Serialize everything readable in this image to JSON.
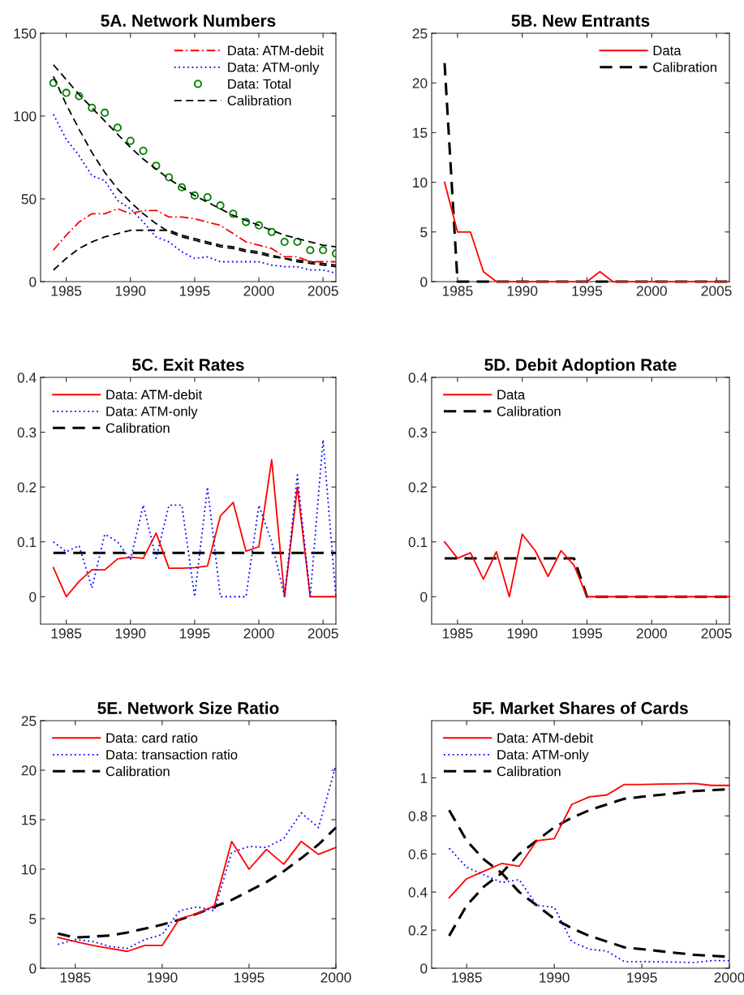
{
  "chart_data": [
    {
      "type": "line",
      "title": "5A. Network Numbers",
      "x": [
        1984,
        1985,
        1986,
        1987,
        1988,
        1989,
        1990,
        1991,
        1992,
        1993,
        1994,
        1995,
        1996,
        1997,
        1998,
        1999,
        2000,
        2001,
        2002,
        2003,
        2004,
        2005,
        2006
      ],
      "xlim": [
        1983,
        2006
      ],
      "xticks": [
        1985,
        1990,
        1995,
        2000,
        2005
      ],
      "ylim": [
        0,
        150
      ],
      "yticks": [
        0,
        50,
        100,
        150
      ],
      "grid": false,
      "legend": "top right",
      "series": [
        {
          "name": "Data: ATM-debit",
          "color": "#ff0000",
          "line_style": "dashdot",
          "values": [
            19,
            28,
            36,
            41,
            41,
            44,
            41,
            43,
            43,
            39,
            39,
            38,
            36,
            34,
            29,
            24,
            22,
            20,
            15,
            15,
            12,
            12,
            12
          ]
        },
        {
          "name": "Data: ATM-only",
          "color": "#0000ff",
          "line_style": "dotted",
          "values": [
            101,
            86,
            76,
            64,
            61,
            49,
            44,
            36,
            27,
            24,
            18,
            14,
            15,
            12,
            12,
            12,
            12,
            10,
            9,
            9,
            7,
            7,
            5
          ]
        },
        {
          "name": "Data: Total",
          "color": "#008000",
          "type": "scatter",
          "marker": "circle",
          "values": [
            120,
            114,
            112,
            105,
            102,
            93,
            85,
            79,
            70,
            63,
            57,
            52,
            51,
            46,
            41,
            36,
            34,
            30,
            24,
            24,
            19,
            19,
            17
          ]
        },
        {
          "name": "Calibration",
          "color": "#000000",
          "line_style": "dashed",
          "values": [
            131,
            122,
            113,
            105,
            97,
            89,
            81,
            74,
            68,
            62,
            57,
            52,
            48,
            44,
            40,
            37,
            34,
            31,
            28,
            26,
            24,
            22,
            21
          ]
        },
        {
          "color": "#000000",
          "line_style": "dashed",
          "values": [
            7,
            14,
            20,
            24,
            27,
            29,
            31,
            31,
            31,
            31,
            28,
            26,
            24,
            22,
            21,
            19,
            18,
            16,
            14,
            13,
            12,
            11,
            10
          ]
        },
        {
          "color": "#000000",
          "line_style": "dashed",
          "values": [
            124,
            107,
            92,
            78,
            66,
            56,
            48,
            41,
            35,
            30,
            27,
            25,
            23,
            21,
            20,
            18,
            17,
            15,
            14,
            12,
            11,
            10,
            9
          ]
        }
      ]
    },
    {
      "type": "line",
      "title": "5B. New Entrants",
      "x": [
        1984,
        1985,
        1986,
        1987,
        1988,
        1989,
        1990,
        1991,
        1992,
        1993,
        1994,
        1995,
        1996,
        1997,
        1998,
        1999,
        2000,
        2001,
        2002,
        2003,
        2004,
        2005,
        2006
      ],
      "xlim": [
        1983,
        2006
      ],
      "xticks": [
        1985,
        1990,
        1995,
        2000,
        2005
      ],
      "ylim": [
        0,
        25
      ],
      "yticks": [
        0,
        5,
        10,
        15,
        20,
        25
      ],
      "grid": false,
      "legend": "top right",
      "series": [
        {
          "name": "Data",
          "color": "#ff0000",
          "line_style": "solid",
          "values": [
            10,
            5,
            5,
            1,
            0,
            0,
            0,
            0,
            0,
            0,
            0,
            0,
            1,
            0,
            0,
            0,
            0,
            0,
            0,
            0,
            0,
            0,
            0
          ]
        },
        {
          "name": "Calibration",
          "color": "#000000",
          "line_style": "dashed",
          "values": [
            22,
            0,
            0,
            0,
            0,
            0,
            0,
            0,
            0,
            0,
            0,
            0,
            0,
            0,
            0,
            0,
            0,
            0,
            0,
            0,
            0,
            0,
            0
          ]
        }
      ]
    },
    {
      "type": "line",
      "title": "5C. Exit Rates",
      "x": [
        1984,
        1985,
        1986,
        1987,
        1988,
        1989,
        1990,
        1991,
        1992,
        1993,
        1994,
        1995,
        1996,
        1997,
        1998,
        1999,
        2000,
        2001,
        2002,
        2003,
        2004,
        2005,
        2006
      ],
      "xlim": [
        1983,
        2006
      ],
      "xticks": [
        1985,
        1990,
        1995,
        2000,
        2005
      ],
      "ylim": [
        -0.05,
        0.4
      ],
      "yticks": [
        0,
        0.1,
        0.2,
        0.3,
        0.4
      ],
      "grid": false,
      "legend": "top left",
      "series": [
        {
          "name": "Data: ATM-debit",
          "color": "#ff0000",
          "line_style": "solid",
          "values": [
            0.053,
            0,
            0.028,
            0.049,
            0.049,
            0.069,
            0.072,
            0.07,
            0.116,
            0.052,
            0.052,
            0.053,
            0.056,
            0.147,
            0.172,
            0.083,
            0.091,
            0.25,
            0,
            0.2,
            0,
            0,
            0
          ]
        },
        {
          "name": "Data: ATM-only",
          "color": "#0000ff",
          "line_style": "dotted",
          "values": [
            0.1,
            0.082,
            0.093,
            0.016,
            0.114,
            0.1,
            0.067,
            0.167,
            0.07,
            0.167,
            0.167,
            0,
            0.2,
            0,
            0,
            0,
            0.167,
            0.1,
            0,
            0.222,
            0,
            0.286,
            0
          ]
        },
        {
          "name": "Calibration",
          "color": "#000000",
          "line_style": "dashed",
          "values": [
            0.08,
            0.08,
            0.08,
            0.08,
            0.08,
            0.08,
            0.08,
            0.08,
            0.08,
            0.08,
            0.08,
            0.08,
            0.08,
            0.08,
            0.08,
            0.08,
            0.08,
            0.08,
            0.08,
            0.08,
            0.08,
            0.08,
            0.08
          ]
        }
      ]
    },
    {
      "type": "line",
      "title": "5D. Debit Adoption Rate",
      "x": [
        1984,
        1985,
        1986,
        1987,
        1988,
        1989,
        1990,
        1991,
        1992,
        1993,
        1994,
        1995,
        1996,
        1997,
        1998,
        1999,
        2000,
        2001,
        2002,
        2003,
        2004,
        2005,
        2006
      ],
      "xlim": [
        1983,
        2006
      ],
      "xticks": [
        1985,
        1990,
        1995,
        2000,
        2005
      ],
      "ylim": [
        -0.05,
        0.4
      ],
      "yticks": [
        0,
        0.1,
        0.2,
        0.3,
        0.4
      ],
      "grid": false,
      "legend": "top left",
      "series": [
        {
          "name": "Data",
          "color": "#ff0000",
          "line_style": "solid",
          "values": [
            0.1,
            0.07,
            0.08,
            0.032,
            0.082,
            0,
            0.114,
            0.084,
            0.037,
            0.084,
            0.057,
            0,
            0,
            0,
            0,
            0,
            0,
            0,
            0,
            0,
            0,
            0,
            0
          ]
        },
        {
          "name": "Calibration",
          "color": "#000000",
          "line_style": "dashed",
          "values": [
            0.07,
            0.07,
            0.07,
            0.07,
            0.07,
            0.07,
            0.07,
            0.07,
            0.07,
            0.07,
            0.07,
            0,
            0,
            0,
            0,
            0,
            0,
            0,
            0,
            0,
            0,
            0,
            0
          ]
        }
      ]
    },
    {
      "type": "line",
      "title": "5E. Network Size Ratio",
      "x": [
        1984,
        1985,
        1986,
        1987,
        1988,
        1989,
        1990,
        1991,
        1992,
        1993,
        1994,
        1995,
        1996,
        1997,
        1998,
        1999,
        2000
      ],
      "xlim": [
        1983,
        2000
      ],
      "xticks": [
        1985,
        1990,
        1995,
        2000
      ],
      "ylim": [
        0,
        25
      ],
      "yticks": [
        0,
        5,
        10,
        15,
        20,
        25
      ],
      "grid": false,
      "legend": "top left",
      "series": [
        {
          "name": "Data: card ratio",
          "color": "#ff0000",
          "line_style": "solid",
          "values": [
            3.1,
            2.7,
            2.3,
            2.0,
            1.7,
            2.3,
            2.3,
            5.0,
            5.5,
            6.3,
            12.8,
            10.0,
            12.0,
            10.5,
            12.8,
            11.5,
            12.2
          ]
        },
        {
          "name": "Data: transaction ratio",
          "color": "#0000ff",
          "line_style": "dotted",
          "values": [
            2.4,
            2.9,
            2.7,
            2.2,
            2.0,
            2.9,
            3.4,
            5.8,
            6.2,
            5.8,
            11.7,
            12.3,
            12.2,
            13.1,
            15.7,
            14.2,
            20.5
          ]
        },
        {
          "name": "Calibration",
          "color": "#000000",
          "line_style": "dashed",
          "values": [
            3.5,
            3.1,
            3.2,
            3.3,
            3.6,
            4.0,
            4.4,
            4.9,
            5.5,
            6.2,
            6.9,
            7.8,
            8.7,
            9.8,
            11.1,
            12.5,
            14.2
          ]
        }
      ]
    },
    {
      "type": "line",
      "title": "5F. Market Shares of Cards",
      "x": [
        1984,
        1985,
        1986,
        1987,
        1988,
        1989,
        1990,
        1991,
        1992,
        1993,
        1994,
        1995,
        1996,
        1997,
        1998,
        1999,
        2000
      ],
      "xlim": [
        1983,
        2000
      ],
      "xticks": [
        1985,
        1990,
        1995,
        2000
      ],
      "ylim": [
        0,
        1.3
      ],
      "yticks": [
        0,
        0.2,
        0.4,
        0.6,
        0.8,
        1
      ],
      "grid": false,
      "legend": "top left",
      "series": [
        {
          "name": "Data: ATM-debit",
          "color": "#ff0000",
          "line_style": "solid",
          "values": [
            0.37,
            0.47,
            0.51,
            0.55,
            0.535,
            0.67,
            0.68,
            0.86,
            0.9,
            0.91,
            0.965,
            0.965,
            0.967,
            0.968,
            0.97,
            0.96,
            0.96
          ]
        },
        {
          "name": "Data: ATM-only",
          "color": "#0000ff",
          "line_style": "dotted",
          "values": [
            0.63,
            0.53,
            0.49,
            0.45,
            0.465,
            0.33,
            0.32,
            0.14,
            0.1,
            0.09,
            0.035,
            0.035,
            0.033,
            0.032,
            0.03,
            0.04,
            0.04
          ]
        },
        {
          "name": "Calibration",
          "color": "#000000",
          "line_style": "dashed",
          "values": [
            0.17,
            0.33,
            0.43,
            0.5,
            0.6,
            0.67,
            0.74,
            0.79,
            0.83,
            0.86,
            0.89,
            0.9,
            0.91,
            0.92,
            0.93,
            0.935,
            0.94
          ]
        },
        {
          "color": "#000000",
          "line_style": "dashed",
          "values": [
            0.83,
            0.67,
            0.57,
            0.5,
            0.4,
            0.33,
            0.26,
            0.21,
            0.17,
            0.14,
            0.11,
            0.1,
            0.09,
            0.08,
            0.07,
            0.065,
            0.06
          ]
        }
      ]
    }
  ]
}
